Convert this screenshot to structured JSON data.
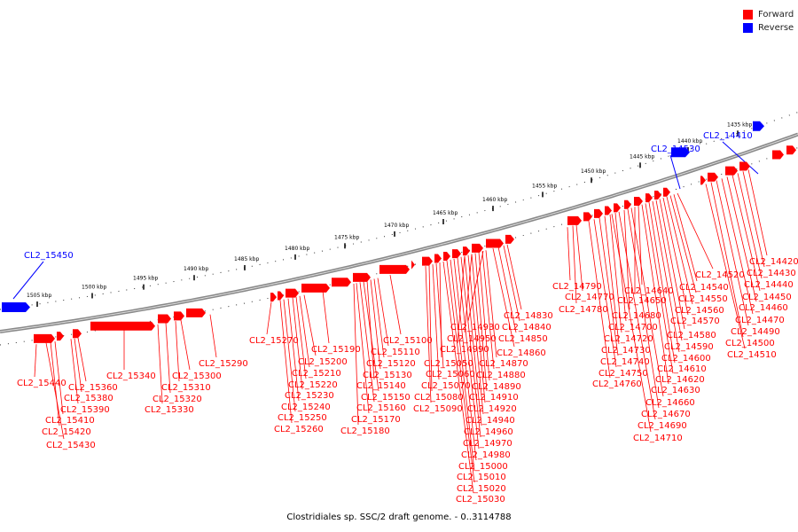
{
  "caption": "Clostridiales sp. SSC/2 draft genome. - 0..3114788",
  "legend": [
    {
      "label": "Forward",
      "color": "#ff0000"
    },
    {
      "label": "Reverse",
      "color": "#0000ff"
    }
  ],
  "colors": {
    "forward": "#ff0000",
    "reverse": "#0000ff",
    "backbone": "#888888"
  },
  "ticks": [
    "1505 kbp",
    "1500 kbp",
    "1495 kbp",
    "1490 kbp",
    "1485 kbp",
    "1480 kbp",
    "1475 kbp",
    "1470 kbp",
    "1465 kbp",
    "1460 kbp",
    "1455 kbp",
    "1450 kbp",
    "1445 kbp",
    "1440 kbp",
    "1435 kbp"
  ],
  "reverse_labels": [
    "CL2_15450",
    "CL2_14530",
    "CL2_14410"
  ],
  "forward_labels": [
    "CL2_15440",
    "CL2_15410",
    "CL2_15420",
    "CL2_15430",
    "CL2_15360",
    "CL2_15380",
    "CL2_15390",
    "CL2_15340",
    "CL2_15330",
    "CL2_15320",
    "CL2_15310",
    "CL2_15300",
    "CL2_15290",
    "CL2_15270",
    "CL2_15260",
    "CL2_15250",
    "CL2_15240",
    "CL2_15230",
    "CL2_15220",
    "CL2_15210",
    "CL2_15200",
    "CL2_15190",
    "CL2_15180",
    "CL2_15170",
    "CL2_15160",
    "CL2_15150",
    "CL2_15140",
    "CL2_15130",
    "CL2_15120",
    "CL2_15110",
    "CL2_15100",
    "CL2_15090",
    "CL2_15080",
    "CL2_15070",
    "CL2_15060",
    "CL2_15050",
    "CL2_15030",
    "CL2_15020",
    "CL2_15010",
    "CL2_15000",
    "CL2_14980",
    "CL2_14970",
    "CL2_14960",
    "CL2_14940",
    "CL2_14920",
    "CL2_14910",
    "CL2_14890",
    "CL2_14880",
    "CL2_14870",
    "CL2_14990",
    "CL2_14950",
    "CL2_14930",
    "CL2_14860",
    "CL2_14850",
    "CL2_14840",
    "CL2_14830",
    "CL2_14790",
    "CL2_14770",
    "CL2_14780",
    "CL2_14760",
    "CL2_14750",
    "CL2_14740",
    "CL2_14730",
    "CL2_14720",
    "CL2_14710",
    "CL2_14700",
    "CL2_14690",
    "CL2_14680",
    "CL2_14670",
    "CL2_14660",
    "CL2_14650",
    "CL2_14640",
    "CL2_14630",
    "CL2_14620",
    "CL2_14610",
    "CL2_14600",
    "CL2_14590",
    "CL2_14580",
    "CL2_14570",
    "CL2_14560",
    "CL2_14550",
    "CL2_14540",
    "CL2_14520",
    "CL2_14510",
    "CL2_14500",
    "CL2_14490",
    "CL2_14470",
    "CL2_14460",
    "CL2_14450",
    "CL2_14440",
    "CL2_14430",
    "CL2_14420"
  ]
}
